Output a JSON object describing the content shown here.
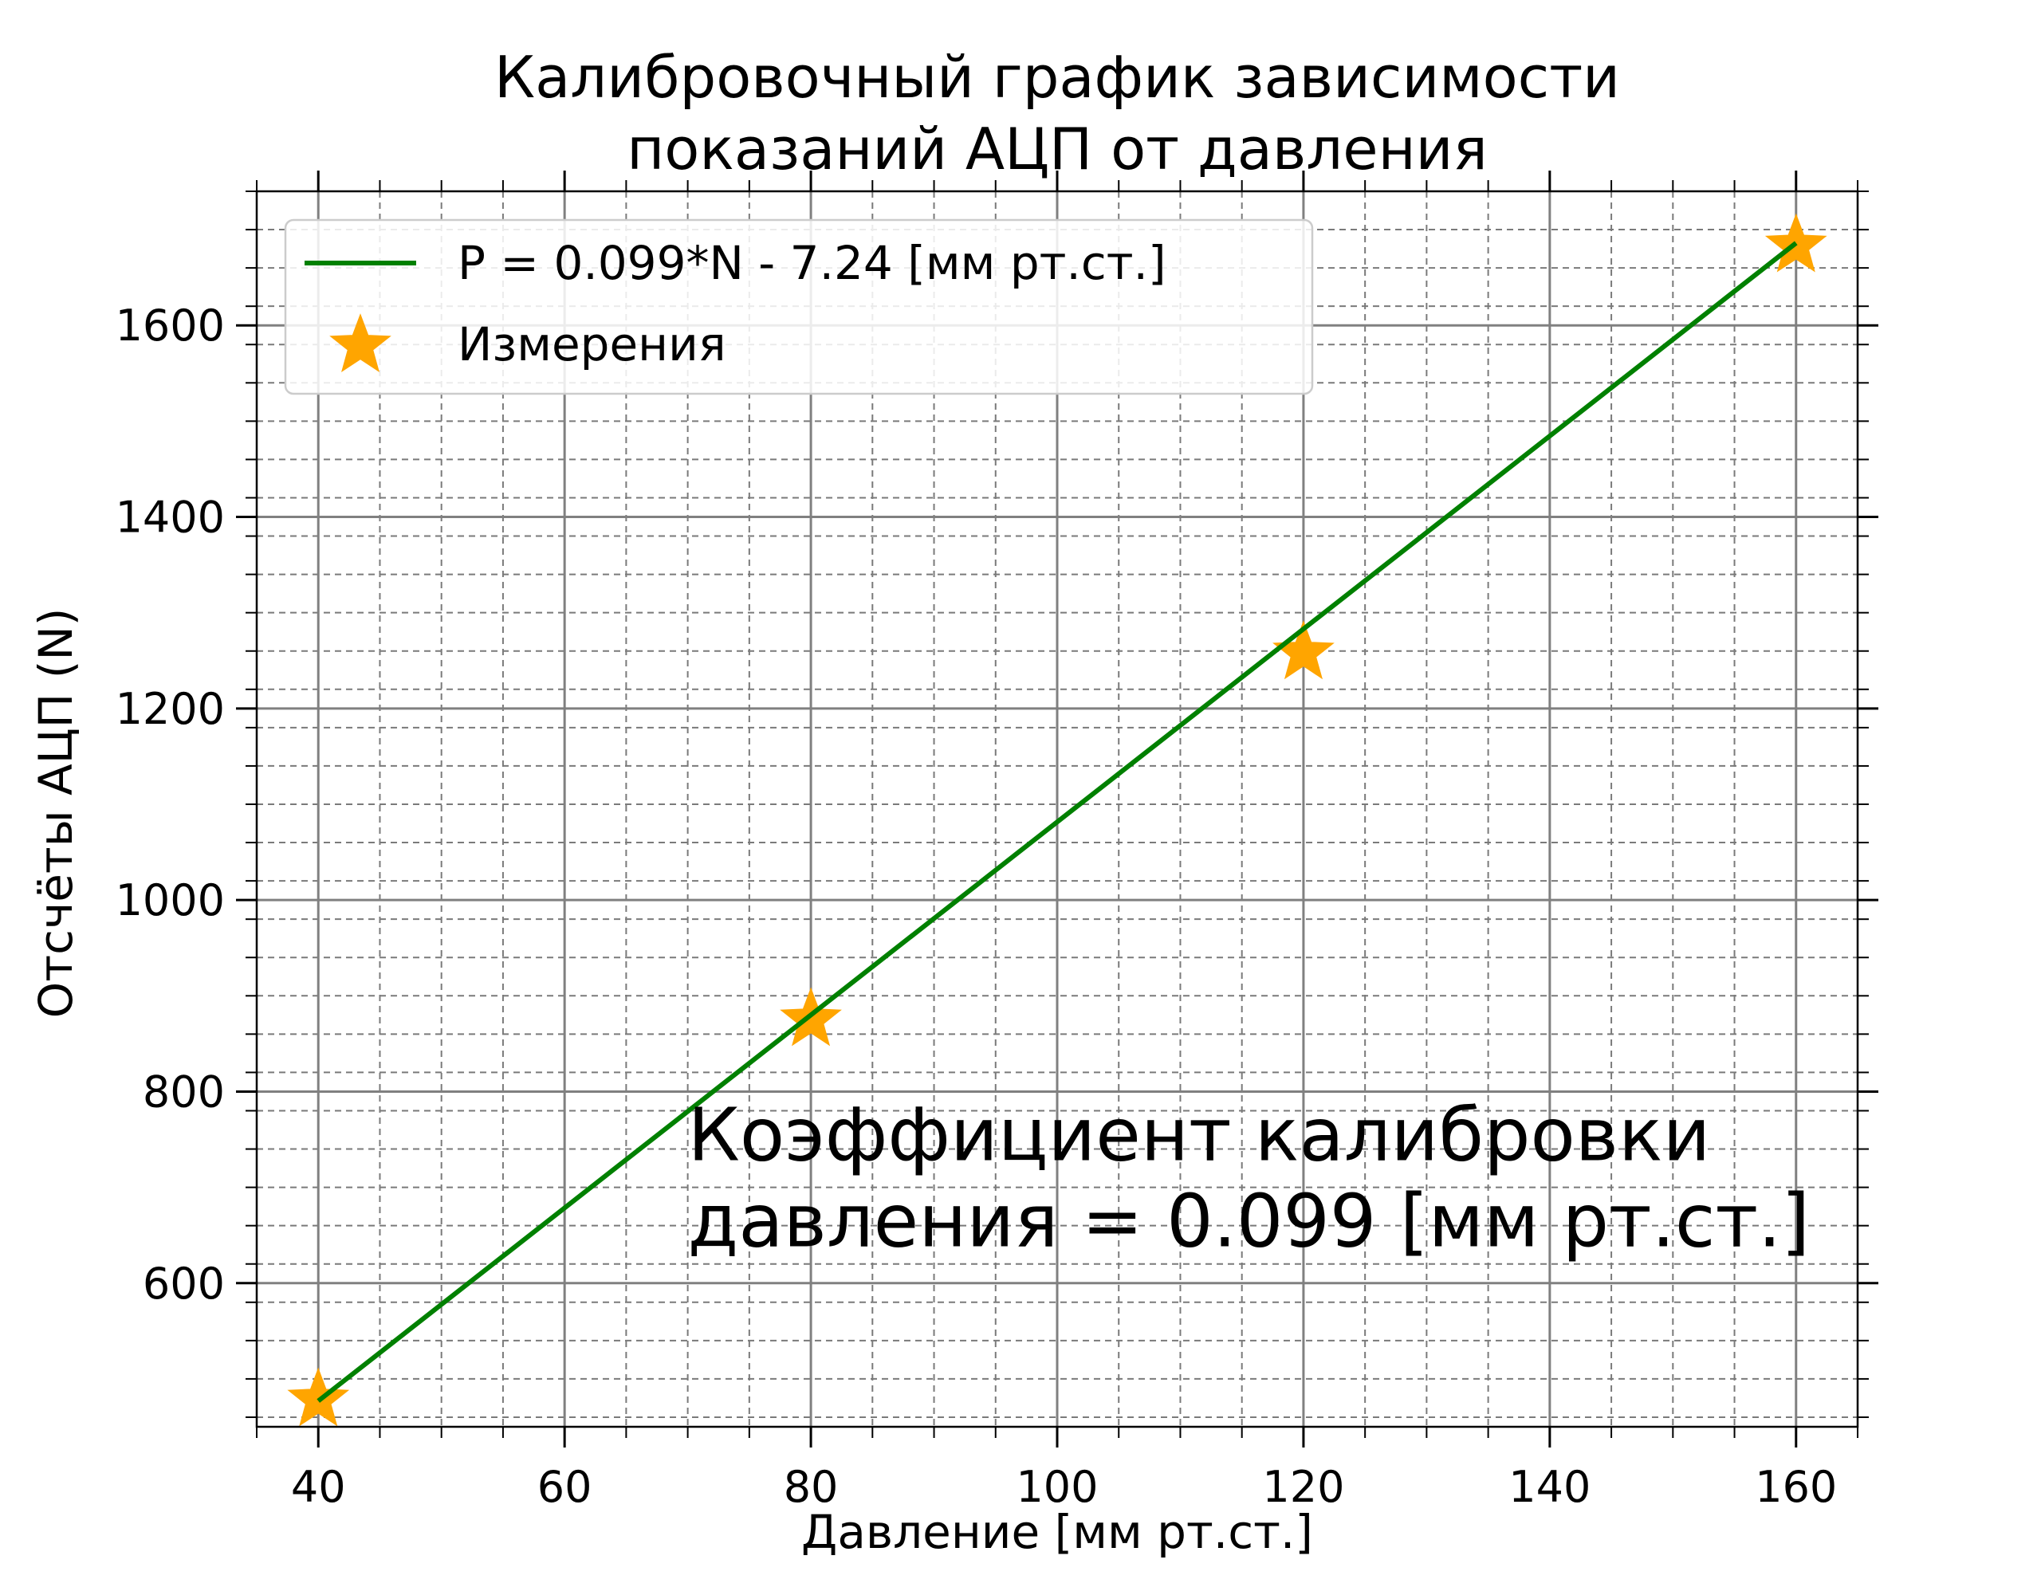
{
  "chart_data": {
    "type": "line",
    "title_lines": [
      "Калибровочный график зависимости",
      "показаний АЦП от давления"
    ],
    "xlabel": "Давление [мм рт.ст.]",
    "ylabel": "Отсчёты АЦП (N)",
    "xlim": [
      35,
      165
    ],
    "ylim": [
      450,
      1740
    ],
    "x_ticks": [
      40,
      60,
      80,
      100,
      120,
      140,
      160
    ],
    "y_ticks": [
      600,
      800,
      1000,
      1200,
      1400,
      1600
    ],
    "grid": true,
    "legend_position": "upper-left",
    "series": [
      {
        "name": "P = 0.099*N - 7.24 [мм рт.ст.]",
        "kind": "line",
        "color": "#008000",
        "x": [
          40,
          160
        ],
        "y": [
          477,
          1686
        ]
      },
      {
        "name": "Измерения",
        "kind": "scatter",
        "marker": "star",
        "color": "#FFA500",
        "x": [
          40,
          80,
          120,
          160
        ],
        "y": [
          478,
          875,
          1258,
          1683
        ]
      }
    ],
    "annotation": {
      "lines": [
        "Коэффициент калибровки",
        "давления = 0.099 [мм рт.ст.]"
      ],
      "x": 70,
      "y": 685
    }
  }
}
